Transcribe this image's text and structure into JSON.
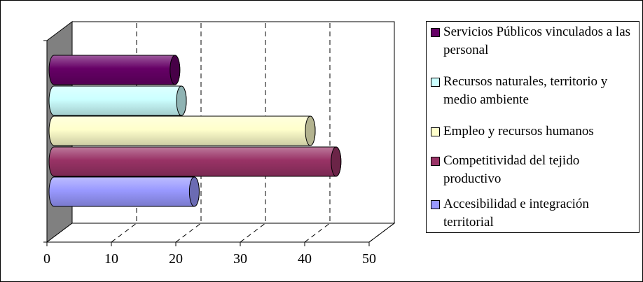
{
  "chart_data": {
    "type": "bar",
    "orientation": "horizontal",
    "style": "3d-cylinder",
    "categories": [
      "Servicios Públicos vinculados a las personal",
      "Recursos naturales, territorio y medio ambiente",
      "Empleo y recursos humanos",
      "Competitividad del tejido productivo",
      "Accesibilidad e integración territorial"
    ],
    "values": [
      19,
      20,
      40,
      44,
      22
    ],
    "colors": [
      "#660066",
      "#ccffff",
      "#ffffcc",
      "#993366",
      "#9999ff"
    ],
    "xlim": [
      0,
      50
    ],
    "xticks": [
      "0",
      "10",
      "20",
      "30",
      "40",
      "50"
    ],
    "grid": true,
    "legend_position": "right"
  }
}
